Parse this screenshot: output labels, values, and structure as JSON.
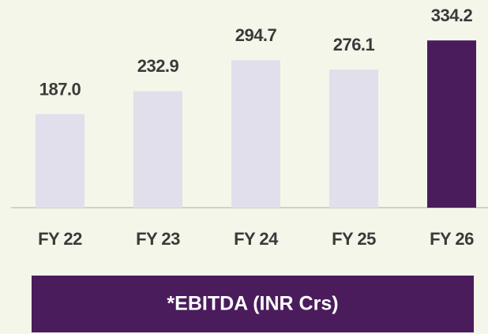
{
  "chart_data": {
    "type": "bar",
    "title": "*EBITDA (INR Crs)",
    "categories": [
      "FY 22",
      "FY 23",
      "FY 24",
      "FY 25",
      "FY 26"
    ],
    "values": [
      187.0,
      232.9,
      294.7,
      276.1,
      334.2
    ],
    "value_labels": [
      "187.0",
      "232.9",
      "294.7",
      "276.1",
      "334.2"
    ],
    "colors": [
      "#e2dfec",
      "#e2dfec",
      "#e2dfec",
      "#e2dfec",
      "#4a1c5c"
    ],
    "ylim": [
      0,
      415
    ]
  }
}
